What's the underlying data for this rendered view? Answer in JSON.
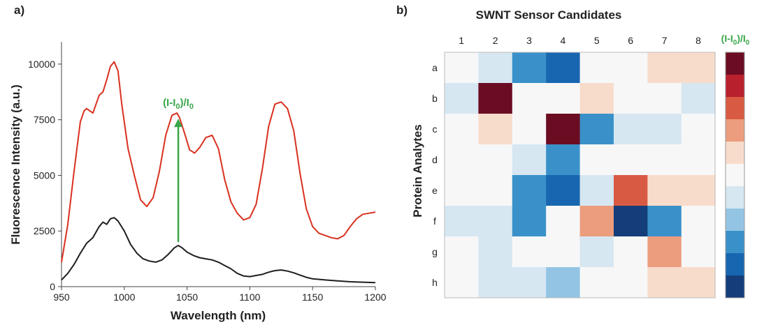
{
  "chart_data": [
    {
      "panel_label": "a)",
      "type": "line",
      "xlabel": "Wavelength (nm)",
      "ylabel": "Fluorescence Intensity (a.u.)",
      "xlim": [
        950,
        1200
      ],
      "ylim": [
        0,
        11000
      ],
      "xticks": [
        950,
        1000,
        1050,
        1100,
        1150,
        1200
      ],
      "yticks": [
        0,
        2500,
        5000,
        7500,
        10000
      ],
      "annotation": {
        "text_prefix": "(I-I",
        "sub1": "0",
        "text_mid": ")/I",
        "sub2": "0",
        "arrow_x": 1043,
        "arrow_from": 2000,
        "arrow_to": 7550,
        "color": "#3aa64a"
      },
      "series": [
        {
          "color": "#d9301f",
          "x": [
            950,
            955,
            960,
            965,
            968,
            970,
            975,
            980,
            983,
            986,
            989,
            992,
            995,
            998,
            1003,
            1008,
            1013,
            1018,
            1023,
            1028,
            1033,
            1038,
            1042,
            1044,
            1048,
            1052,
            1056,
            1060,
            1065,
            1070,
            1075,
            1080,
            1085,
            1090,
            1095,
            1100,
            1105,
            1110,
            1115,
            1120,
            1125,
            1130,
            1135,
            1140,
            1145,
            1150,
            1155,
            1160,
            1165,
            1170,
            1175,
            1180,
            1185,
            1190,
            1195,
            1200
          ],
          "y": [
            1100,
            2800,
            5200,
            7400,
            7900,
            8000,
            7800,
            8600,
            8750,
            9300,
            9900,
            10100,
            9700,
            8200,
            6200,
            5000,
            3900,
            3600,
            4000,
            5200,
            6800,
            7700,
            7800,
            7600,
            6900,
            6150,
            6000,
            6250,
            6700,
            6800,
            6200,
            4800,
            3800,
            3300,
            3000,
            3100,
            3700,
            5300,
            7200,
            8200,
            8300,
            8000,
            7000,
            5100,
            3500,
            2700,
            2400,
            2300,
            2200,
            2150,
            2300,
            2700,
            3050,
            3250,
            3300,
            3350
          ]
        },
        {
          "color": "#1e1e1e",
          "x": [
            950,
            955,
            960,
            965,
            970,
            975,
            980,
            983,
            986,
            989,
            992,
            995,
            1000,
            1005,
            1010,
            1015,
            1020,
            1025,
            1030,
            1035,
            1040,
            1043,
            1046,
            1050,
            1055,
            1060,
            1065,
            1070,
            1075,
            1080,
            1085,
            1090,
            1095,
            1100,
            1105,
            1110,
            1115,
            1120,
            1125,
            1130,
            1135,
            1140,
            1145,
            1150,
            1160,
            1170,
            1180,
            1190,
            1200
          ],
          "y": [
            300,
            600,
            1000,
            1500,
            1950,
            2200,
            2700,
            2900,
            2800,
            3050,
            3100,
            2950,
            2500,
            1900,
            1500,
            1250,
            1150,
            1100,
            1200,
            1450,
            1750,
            1850,
            1750,
            1550,
            1400,
            1300,
            1250,
            1200,
            1100,
            950,
            800,
            600,
            480,
            450,
            500,
            550,
            650,
            720,
            750,
            700,
            620,
            520,
            420,
            350,
            300,
            260,
            220,
            200,
            180
          ]
        }
      ]
    },
    {
      "panel_label": "b)",
      "type": "heatmap",
      "title": "SWNT Sensor Candidates",
      "ylabel": "Protein Analytes",
      "columns": [
        "1",
        "2",
        "3",
        "4",
        "5",
        "6",
        "7",
        "8"
      ],
      "rows": [
        "a",
        "b",
        "c",
        "d",
        "e",
        "f",
        "g",
        "h"
      ],
      "colorbar_label": {
        "prefix": "(I-I",
        "sub1": "0",
        "mid": ")/I",
        "sub2": "0",
        "color": "#3aa64a"
      },
      "colorscale": [
        "#6b0c22",
        "#b9202e",
        "#d95a43",
        "#ec9d7e",
        "#f8dccb",
        "#f7f7f7",
        "#d6e7f2",
        "#94c4e3",
        "#3a91c9",
        "#1866b0",
        "#143d7a"
      ],
      "values": [
        [
          0,
          -1,
          -3,
          -4,
          0,
          0,
          1,
          1
        ],
        [
          -1,
          5,
          0,
          0,
          1,
          0,
          0,
          -1
        ],
        [
          0,
          1,
          0,
          5,
          -3,
          -1,
          -1,
          0
        ],
        [
          0,
          0,
          -1,
          -3,
          0,
          0,
          0,
          0
        ],
        [
          0,
          0,
          -3,
          -4,
          -1,
          3,
          1,
          1
        ],
        [
          -1,
          -1,
          -3,
          0,
          2,
          -5,
          -3,
          0
        ],
        [
          0,
          -1,
          0,
          0,
          -1,
          0,
          2,
          0
        ],
        [
          0,
          -1,
          -1,
          -2,
          0,
          0,
          1,
          1
        ]
      ]
    }
  ]
}
